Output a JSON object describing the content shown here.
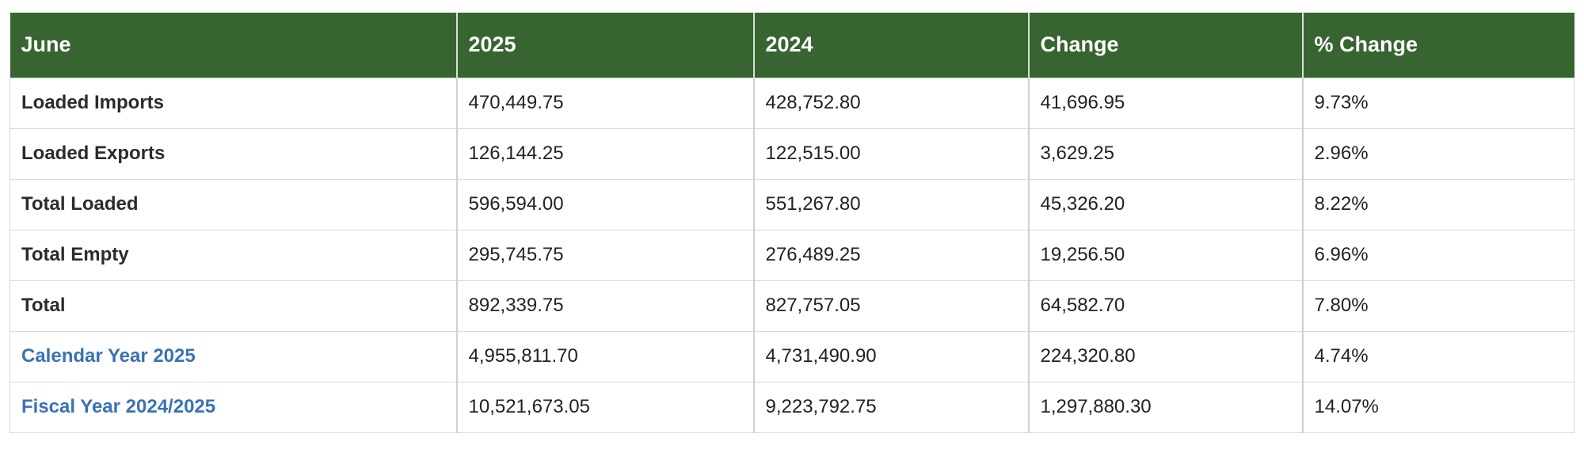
{
  "table": {
    "headers": [
      "June",
      "2025",
      "2024",
      "Change",
      "% Change"
    ],
    "rows": [
      {
        "label": "Loaded Imports",
        "is_link": false,
        "values": [
          "470,449.75",
          "428,752.80",
          "41,696.95",
          "9.73%"
        ]
      },
      {
        "label": "Loaded Exports",
        "is_link": false,
        "values": [
          "126,144.25",
          "122,515.00",
          "3,629.25",
          "2.96%"
        ]
      },
      {
        "label": "Total Loaded",
        "is_link": false,
        "values": [
          "596,594.00",
          "551,267.80",
          "45,326.20",
          "8.22%"
        ]
      },
      {
        "label": "Total Empty",
        "is_link": false,
        "values": [
          "295,745.75",
          "276,489.25",
          "19,256.50",
          "6.96%"
        ]
      },
      {
        "label": "Total",
        "is_link": false,
        "values": [
          "892,339.75",
          "827,757.05",
          "64,582.70",
          "7.80%"
        ]
      },
      {
        "label": "Calendar Year 2025",
        "is_link": true,
        "values": [
          "4,955,811.70",
          "4,731,490.90",
          "224,320.80",
          "4.74%"
        ]
      },
      {
        "label": "Fiscal Year 2024/2025",
        "is_link": true,
        "values": [
          "10,521,673.05",
          "9,223,792.75",
          "1,297,880.30",
          "14.07%"
        ]
      }
    ]
  },
  "colors": {
    "header_bg": "#376430",
    "header_text": "#ffffff",
    "link_text": "#3a72b4",
    "body_text": "#222222",
    "border": "#d9d9d9"
  }
}
